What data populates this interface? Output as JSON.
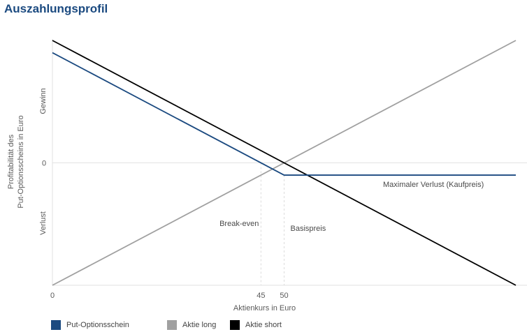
{
  "header": {
    "title": "Auszahlungsprofil"
  },
  "chart_data": {
    "type": "line",
    "title": "Auszahlungsprofil",
    "xlabel": "Aktienkurs in Euro",
    "ylabel_line1": "Profitabilität des",
    "ylabel_line2": "Put-Optionsscheins in Euro",
    "y_top_label": "Gewinn",
    "y_zero_label": "0",
    "y_bottom_label": "Verlust",
    "x_ticks": [
      {
        "value": 0,
        "label": "0"
      },
      {
        "value": 45,
        "label": "45"
      },
      {
        "value": 50,
        "label": "50"
      }
    ],
    "xlim": [
      0,
      100
    ],
    "ylim": [
      -50,
      50
    ],
    "grid": false,
    "legend_position": "bottom",
    "series": [
      {
        "name": "Put-Optionsschein",
        "color": "#1b4a80",
        "x": [
          0,
          50,
          100
        ],
        "y": [
          45,
          -5,
          -5
        ]
      },
      {
        "name": "Aktie long",
        "color": "#a0a0a0",
        "x": [
          0,
          100
        ],
        "y": [
          -50,
          50
        ]
      },
      {
        "name": "Aktie short",
        "color": "#000000",
        "x": [
          0,
          100
        ],
        "y": [
          50,
          -50
        ]
      }
    ],
    "annotations": {
      "break_even": "Break-even",
      "strike": "Basispreis",
      "max_loss": "Maximaler Verlust (Kaufpreis)"
    }
  }
}
